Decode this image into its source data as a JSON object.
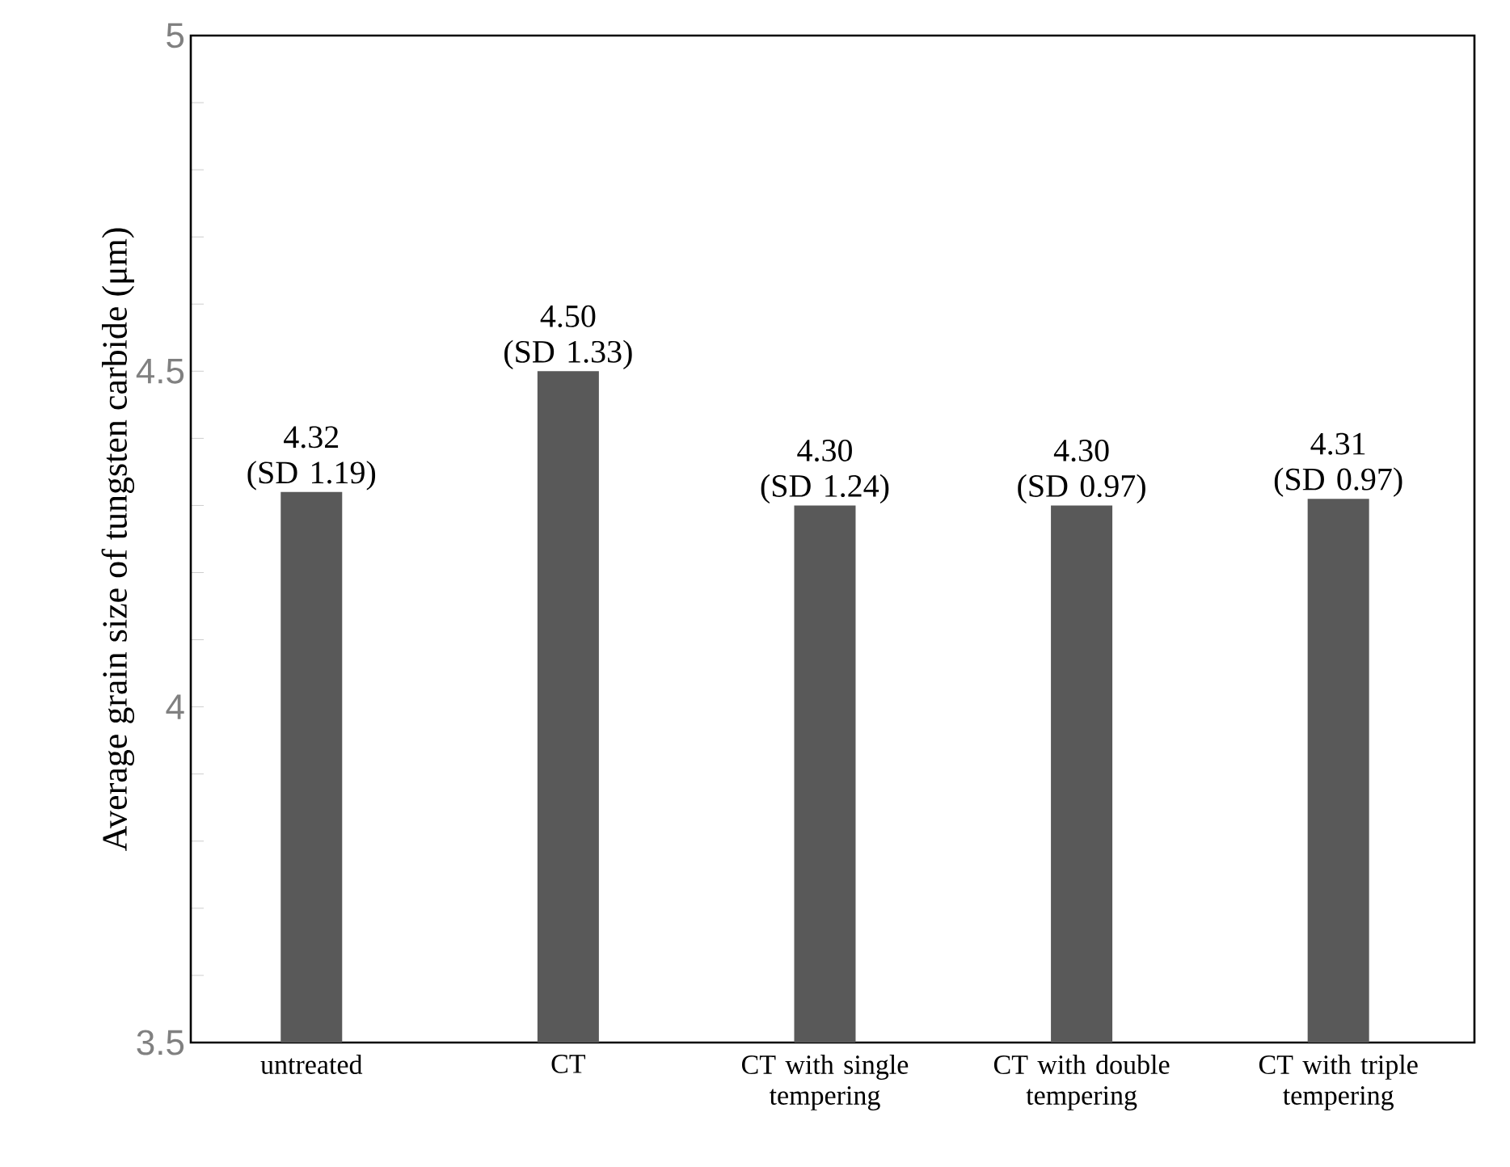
{
  "chart_data": {
    "type": "bar",
    "ylabel": "Average grain size of tungsten carbide (μm)",
    "categories": [
      "untreated",
      "CT",
      "CT with single tempering",
      "CT with double tempering",
      "CT with triple tempering"
    ],
    "values": [
      4.32,
      4.5,
      4.3,
      4.3,
      4.31
    ],
    "value_labels": [
      "4.32 (SD 1.19)",
      "4.50 (SD 1.33)",
      "4.30 (SD 1.24)",
      "4.30 (SD 0.97)",
      "4.31 (SD 0.97)"
    ],
    "color": "#595959",
    "ylim": [
      3.5,
      5
    ],
    "yticks": [
      3.5,
      {
        "value": 3.6,
        "label": null
      },
      {
        "value": 3.7,
        "label": null
      },
      {
        "value": 3.8,
        "label": null
      },
      {
        "value": 3.9,
        "label": null
      },
      4,
      {
        "value": 4.1,
        "label": null
      },
      {
        "value": 4.2,
        "label": null
      },
      {
        "value": 4.3,
        "label": null
      },
      {
        "value": 4.4,
        "label": null
      },
      4.5,
      {
        "value": 4.6,
        "label": null
      },
      {
        "value": 4.7,
        "label": null
      },
      {
        "value": 4.8,
        "label": null
      },
      {
        "value": 4.9,
        "label": null
      },
      5
    ],
    "grid": false
  }
}
